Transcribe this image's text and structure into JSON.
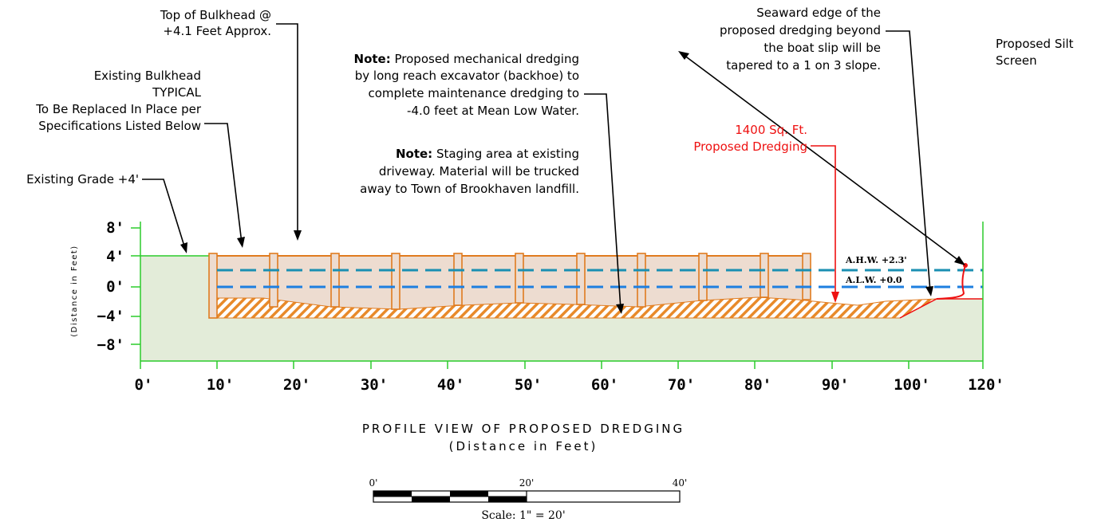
{
  "annotations": {
    "top_of_bulkhead": [
      "Top of Bulkhead @",
      "+4.1 Feet Approx."
    ],
    "existing_bulkhead": [
      "Existing Bulkhead",
      "TYPICAL",
      "To Be Replaced In Place per",
      "Specifications Listed Below"
    ],
    "existing_grade": "Existing Grade +4'",
    "note1_label": "Note:",
    "note1": [
      " Proposed mechanical dredging",
      "by long reach excavator (backhoe) to",
      "complete maintenance dredging to",
      "-4.0 feet at Mean Low Water."
    ],
    "note2_label": "Note:",
    "note2": [
      " Staging area at existing",
      "driveway. Material will be trucked",
      "away to Town of Brookhaven landfill."
    ],
    "seaward_edge": [
      "Seaward edge of the",
      "proposed dredging beyond",
      "the boat slip will be",
      "tapered to a 1 on 3 slope."
    ],
    "silt_screen": [
      "Proposed Silt",
      "Screen"
    ],
    "dredge_area": [
      "1400 Sq. Ft.",
      "Proposed Dredging"
    ]
  },
  "water_levels": {
    "ahw": "A.H.W.  +2.3'",
    "alw": "A.L.W.  +0.0"
  },
  "axes": {
    "y_label": "(Distance in Feet)",
    "y_ticks": [
      "8'",
      "4'",
      "0'",
      "−4'",
      "−8'"
    ],
    "x_ticks": [
      "0'",
      "10'",
      "20'",
      "30'",
      "40'",
      "50'",
      "60'",
      "70'",
      "80'",
      "90'",
      "100'",
      "120'"
    ]
  },
  "title": "PROFILE VIEW OF PROPOSED DREDGING",
  "subtitle": "(Distance in Feet)",
  "scale_bar": {
    "labels": [
      "0'",
      "20'",
      "40'"
    ],
    "caption": "Scale: 1\" = 20'"
  },
  "colors": {
    "ground": "#e3ecd9",
    "grid_green": "#2bcc2b",
    "bulkhead": "#e07b1f",
    "water_fill": "#eddcd0",
    "ahw_line": "#1a8fb2",
    "alw_line": "#1e7fe0",
    "red": "#ee1111"
  }
}
